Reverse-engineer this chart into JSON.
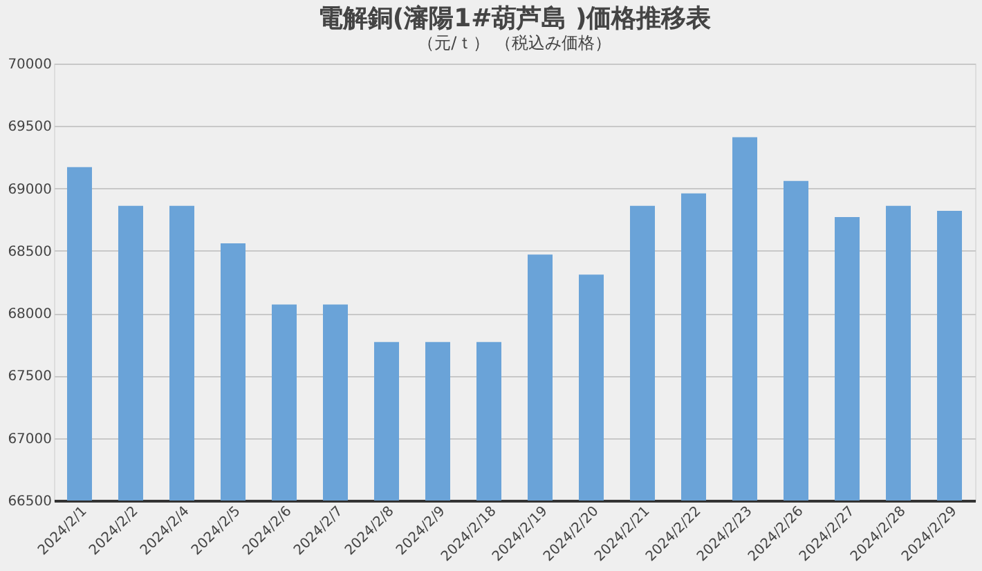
{
  "chart_data": {
    "type": "bar",
    "title": "電解銅(瀋陽1#葫芦島 )価格推移表",
    "subtitle": "（元/ｔ） （税込み価格）",
    "categories": [
      "2024/2/1",
      "2024/2/2",
      "2024/2/4",
      "2024/2/5",
      "2024/2/6",
      "2024/2/7",
      "2024/2/8",
      "2024/2/9",
      "2024/2/18",
      "2024/2/19",
      "2024/2/20",
      "2024/2/21",
      "2024/2/22",
      "2024/2/23",
      "2024/2/26",
      "2024/2/27",
      "2024/2/28",
      "2024/2/29"
    ],
    "values": [
      69170,
      68860,
      68860,
      68560,
      68070,
      68070,
      67770,
      67770,
      67770,
      68470,
      68310,
      68860,
      68960,
      69410,
      69060,
      68770,
      68860,
      68820
    ],
    "color": "#6aa3d8",
    "ylim": [
      66500,
      70000
    ],
    "yticks": [
      66500,
      67000,
      67500,
      68000,
      68500,
      69000,
      69500,
      70000
    ],
    "grid": "y"
  }
}
